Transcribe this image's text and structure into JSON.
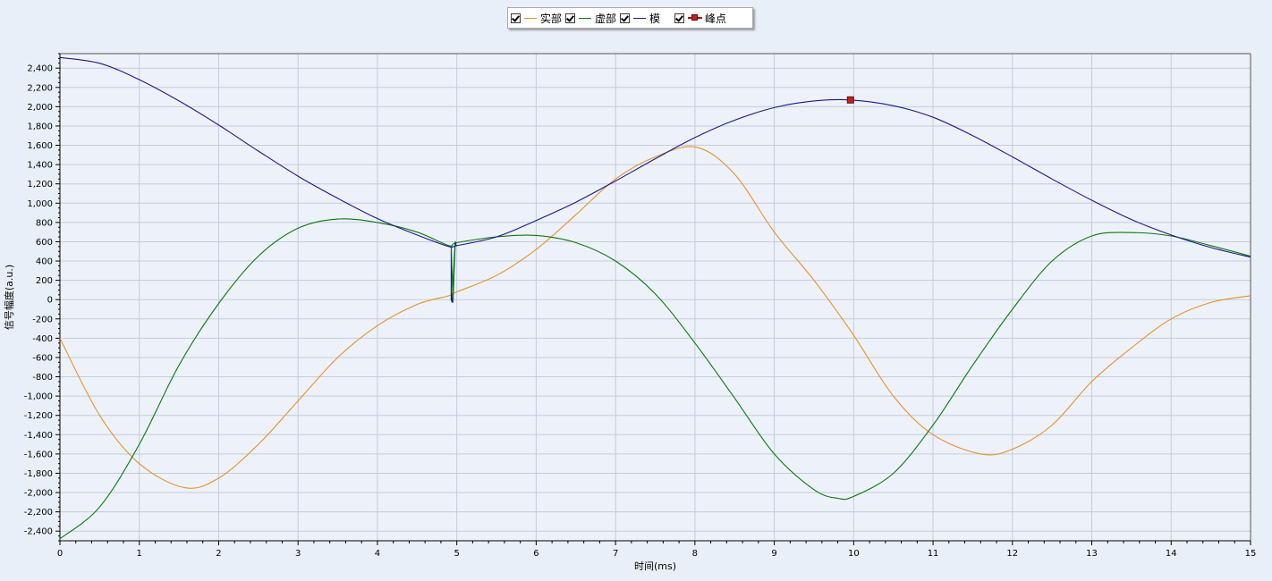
{
  "legend": {
    "items": [
      {
        "label": "实部",
        "color": "#e8902a",
        "checked": true
      },
      {
        "label": "虚部",
        "color": "#0d780d",
        "checked": true
      },
      {
        "label": "模",
        "color": "#1a1a8a",
        "checked": true
      },
      {
        "label": "峰点",
        "color": "#c42020",
        "checked": true
      }
    ]
  },
  "colors": {
    "background": "#e9eff8",
    "plot_background": "#edf2fa",
    "grid": "#c3cbdb"
  },
  "chart_data": {
    "type": "line",
    "title": "",
    "xlabel": "时间(ms)",
    "ylabel": "信号幅度(a.u.)",
    "xlim": [
      0,
      15
    ],
    "ylim": [
      -2500,
      2550
    ],
    "x_ticks": [
      0,
      1,
      2,
      3,
      4,
      5,
      6,
      7,
      8,
      9,
      10,
      11,
      12,
      13,
      14,
      15
    ],
    "y_ticks": [
      -2400,
      -2200,
      -2000,
      -1800,
      -1600,
      -1400,
      -1200,
      -1000,
      -800,
      -600,
      -400,
      -200,
      0,
      200,
      400,
      600,
      800,
      1000,
      1200,
      1400,
      1600,
      1800,
      2000,
      2200,
      2400
    ],
    "grid": true,
    "legend_position": "top-center",
    "series": [
      {
        "name": "实部",
        "color": "#e8902a",
        "points": [
          [
            0,
            -400
          ],
          [
            0.5,
            -1200
          ],
          [
            1,
            -1700
          ],
          [
            1.57,
            -1950
          ],
          [
            2,
            -1850
          ],
          [
            2.5,
            -1500
          ],
          [
            3,
            -1050
          ],
          [
            3.5,
            -600
          ],
          [
            4,
            -270
          ],
          [
            4.5,
            -50
          ],
          [
            4.9,
            40
          ],
          [
            5,
            80
          ],
          [
            5.5,
            250
          ],
          [
            6,
            520
          ],
          [
            6.5,
            880
          ],
          [
            7,
            1250
          ],
          [
            7.5,
            1480
          ],
          [
            8.02,
            1580
          ],
          [
            8.5,
            1300
          ],
          [
            9,
            700
          ],
          [
            9.5,
            200
          ],
          [
            10,
            -370
          ],
          [
            10.5,
            -1000
          ],
          [
            11,
            -1400
          ],
          [
            11.6,
            -1600
          ],
          [
            12,
            -1550
          ],
          [
            12.5,
            -1300
          ],
          [
            13,
            -850
          ],
          [
            13.5,
            -500
          ],
          [
            14,
            -200
          ],
          [
            14.5,
            -30
          ],
          [
            15,
            40
          ]
        ]
      },
      {
        "name": "虚部",
        "color": "#0d780d",
        "points": [
          [
            0,
            -2480
          ],
          [
            0.5,
            -2150
          ],
          [
            1,
            -1500
          ],
          [
            1.5,
            -680
          ],
          [
            2,
            -40
          ],
          [
            2.5,
            450
          ],
          [
            3,
            740
          ],
          [
            3.5,
            835
          ],
          [
            4,
            800
          ],
          [
            4.5,
            700
          ],
          [
            4.9,
            560
          ],
          [
            5,
            590
          ],
          [
            5.5,
            650
          ],
          [
            6,
            665
          ],
          [
            6.5,
            590
          ],
          [
            7,
            400
          ],
          [
            7.5,
            60
          ],
          [
            8,
            -450
          ],
          [
            8.5,
            -1020
          ],
          [
            9,
            -1600
          ],
          [
            9.5,
            -1970
          ],
          [
            9.8,
            -2060
          ],
          [
            10,
            -2040
          ],
          [
            10.5,
            -1800
          ],
          [
            11,
            -1300
          ],
          [
            11.5,
            -680
          ],
          [
            12,
            -100
          ],
          [
            12.5,
            400
          ],
          [
            13,
            660
          ],
          [
            13.5,
            695
          ],
          [
            14,
            660
          ],
          [
            14.5,
            560
          ],
          [
            15,
            450
          ]
        ]
      },
      {
        "name": "模",
        "color": "#1a1a8a",
        "points": [
          [
            0,
            2510
          ],
          [
            0.5,
            2450
          ],
          [
            1,
            2280
          ],
          [
            1.5,
            2060
          ],
          [
            2,
            1810
          ],
          [
            2.5,
            1540
          ],
          [
            3,
            1280
          ],
          [
            3.5,
            1050
          ],
          [
            4,
            840
          ],
          [
            4.5,
            670
          ],
          [
            4.9,
            550
          ],
          [
            5,
            560
          ],
          [
            5.5,
            650
          ],
          [
            6,
            820
          ],
          [
            6.5,
            1010
          ],
          [
            7,
            1230
          ],
          [
            7.5,
            1460
          ],
          [
            8,
            1680
          ],
          [
            8.5,
            1860
          ],
          [
            9,
            1990
          ],
          [
            9.5,
            2060
          ],
          [
            9.96,
            2070
          ],
          [
            10.5,
            2010
          ],
          [
            11,
            1890
          ],
          [
            11.5,
            1700
          ],
          [
            12,
            1480
          ],
          [
            12.5,
            1250
          ],
          [
            13,
            1030
          ],
          [
            13.5,
            830
          ],
          [
            14,
            670
          ],
          [
            14.5,
            540
          ],
          [
            15,
            440
          ]
        ]
      },
      {
        "name": "峰点",
        "color": "#c42020",
        "points": [
          [
            9.96,
            2070
          ]
        ]
      }
    ]
  }
}
